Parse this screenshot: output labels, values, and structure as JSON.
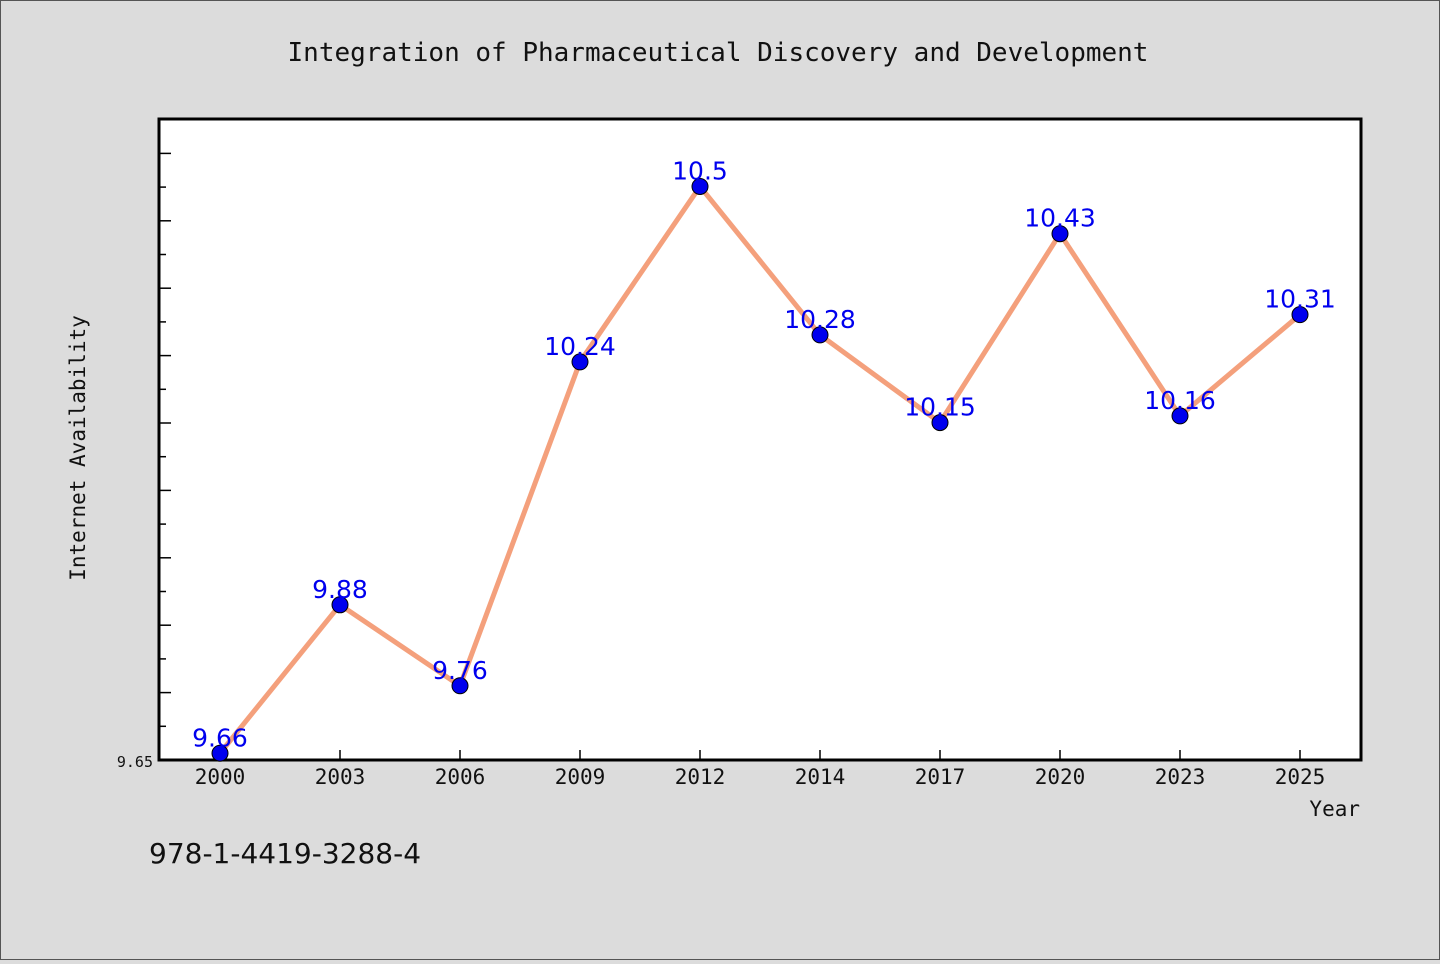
{
  "chart_data": {
    "type": "line",
    "title": "Integration of Pharmaceutical Discovery and Development",
    "xlabel": "Year",
    "ylabel": "Internet Availability",
    "categories": [
      "2000",
      "2003",
      "2006",
      "2009",
      "2012",
      "2014",
      "2017",
      "2020",
      "2023",
      "2025"
    ],
    "series": [
      {
        "values": [
          9.66,
          9.88,
          9.76,
          10.24,
          10.5,
          10.28,
          10.15,
          10.43,
          10.16,
          10.31
        ]
      }
    ],
    "data_labels": [
      "9.66",
      "9.88",
      "9.76",
      "10.24",
      "10.5",
      "10.28",
      "10.15",
      "10.43",
      "10.16",
      "10.31"
    ],
    "y_tick_labels": [
      "9.65"
    ],
    "ylim": [
      9.65,
      10.6
    ],
    "grid": false,
    "line_color": "#f4a07c",
    "marker_color": "#0000ee",
    "label_color": "#0000ee"
  },
  "footer": {
    "isbn": "978-1-4419-3288-4"
  }
}
